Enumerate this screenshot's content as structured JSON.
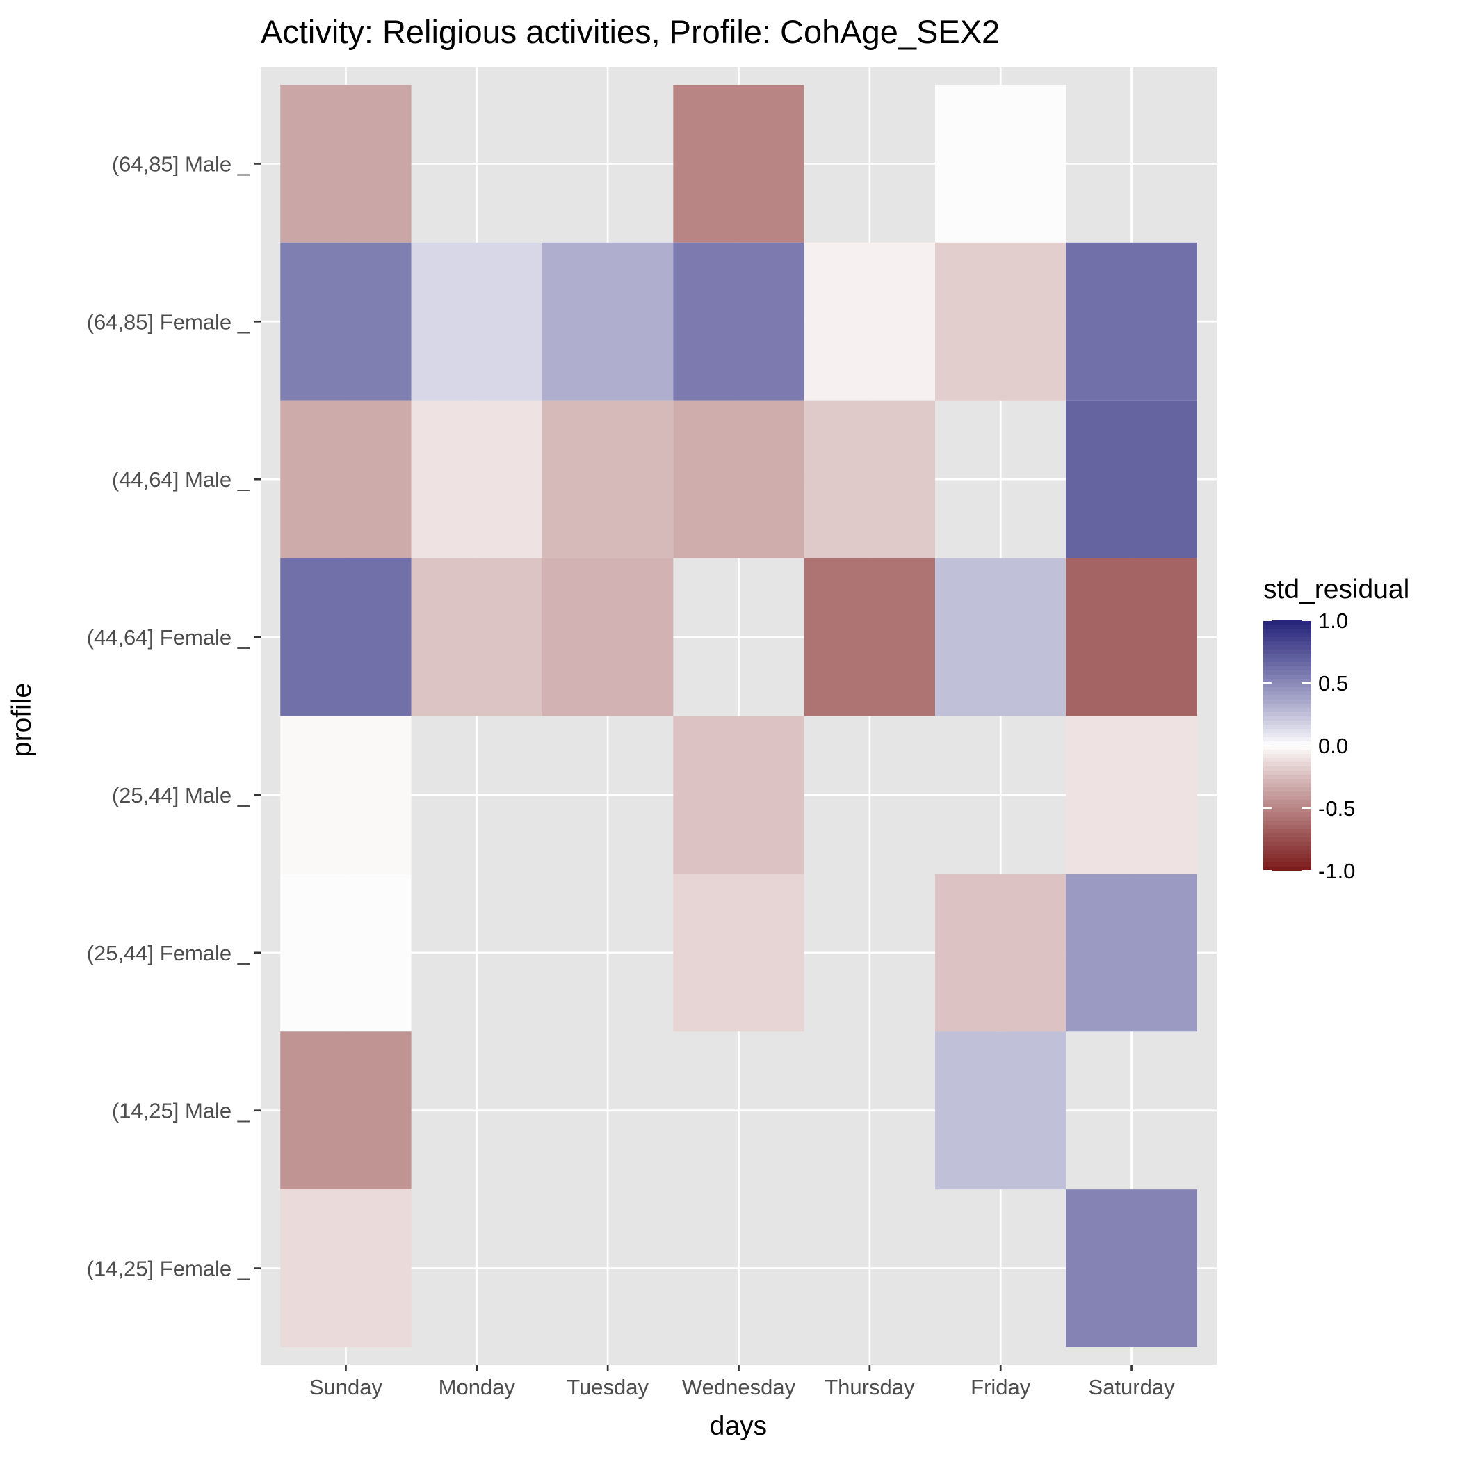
{
  "chart_data": {
    "type": "heatmap",
    "title": "Activity: Religious activities, Profile: CohAge_SEX2",
    "xlabel": "days",
    "ylabel": "profile",
    "x_categories": [
      "Sunday",
      "Monday",
      "Tuesday",
      "Wednesday",
      "Thursday",
      "Friday",
      "Saturday"
    ],
    "y_categories": [
      "(64,85] Male _",
      "(64,85] Female _",
      "(44,64] Male _",
      "(44,64] Female _",
      "(25,44] Male _",
      "(25,44] Female _",
      "(14,25] Male _",
      "(14,25] Female _"
    ],
    "values": [
      [
        -0.35,
        null,
        null,
        -0.5,
        null,
        0.01,
        null
      ],
      [
        0.55,
        0.15,
        0.33,
        0.57,
        -0.05,
        -0.18,
        0.62
      ],
      [
        -0.33,
        -0.1,
        -0.27,
        -0.32,
        -0.2,
        null,
        0.68
      ],
      [
        0.62,
        -0.22,
        -0.3,
        null,
        -0.58,
        0.25,
        -0.65
      ],
      [
        -0.02,
        null,
        null,
        -0.23,
        null,
        null,
        -0.1
      ],
      [
        0.01,
        null,
        null,
        -0.15,
        null,
        -0.23,
        0.42
      ],
      [
        -0.43,
        null,
        null,
        null,
        null,
        0.25,
        null
      ],
      [
        -0.13,
        null,
        null,
        null,
        null,
        null,
        0.53
      ]
    ],
    "legend": {
      "title": "std_residual",
      "ticks": [
        1.0,
        0.5,
        0.0,
        -0.5,
        -1.0
      ],
      "tick_labels": [
        "1.0",
        "0.5",
        "0.0",
        "-0.5",
        "-1.0"
      ],
      "limits": [
        -1.0,
        1.0
      ],
      "colors": {
        "low": "#7a1a1a",
        "mid": "#ffffff",
        "high": "#25237a"
      },
      "placement": "right"
    },
    "grid": true,
    "colors": {
      "panel_background": "#e5e5e5",
      "grid": "#ffffff"
    }
  }
}
